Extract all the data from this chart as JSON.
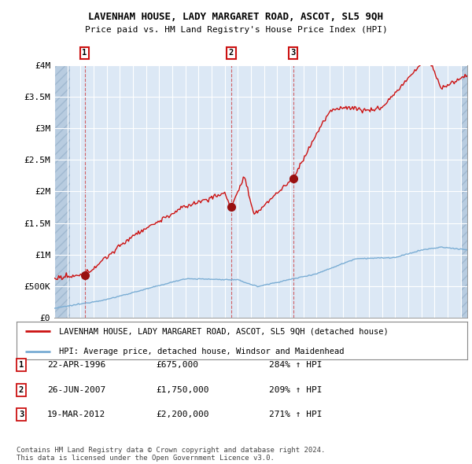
{
  "title": "LAVENHAM HOUSE, LADY MARGARET ROAD, ASCOT, SL5 9QH",
  "subtitle": "Price paid vs. HM Land Registry's House Price Index (HPI)",
  "ylim": [
    0,
    4000000
  ],
  "yticks": [
    0,
    500000,
    1000000,
    1500000,
    2000000,
    2500000,
    3000000,
    3500000,
    4000000
  ],
  "ytick_labels": [
    "£0",
    "£500K",
    "£1M",
    "£1.5M",
    "£2M",
    "£2.5M",
    "£3M",
    "£3.5M",
    "£4M"
  ],
  "xlim_start": 1994.0,
  "xlim_end": 2025.5,
  "sales": [
    {
      "year": 1996.31,
      "price": 675000,
      "label": "1"
    },
    {
      "year": 2007.49,
      "price": 1750000,
      "label": "2"
    },
    {
      "year": 2012.22,
      "price": 2200000,
      "label": "3"
    }
  ],
  "hpi_line_color": "#7aadd4",
  "sale_line_color": "#cc1111",
  "sale_dot_color": "#991111",
  "background_plot": "#dce8f5",
  "grid_color": "#c8d8e8",
  "legend_items": [
    "LAVENHAM HOUSE, LADY MARGARET ROAD, ASCOT, SL5 9QH (detached house)",
    "HPI: Average price, detached house, Windsor and Maidenhead"
  ],
  "table_rows": [
    {
      "num": "1",
      "date": "22-APR-1996",
      "price": "£675,000",
      "hpi": "284% ↑ HPI"
    },
    {
      "num": "2",
      "date": "26-JUN-2007",
      "price": "£1,750,000",
      "hpi": "209% ↑ HPI"
    },
    {
      "num": "3",
      "date": "19-MAR-2012",
      "price": "£2,200,000",
      "hpi": "271% ↑ HPI"
    }
  ],
  "footer": "Contains HM Land Registry data © Crown copyright and database right 2024.\nThis data is licensed under the Open Government Licence v3.0."
}
